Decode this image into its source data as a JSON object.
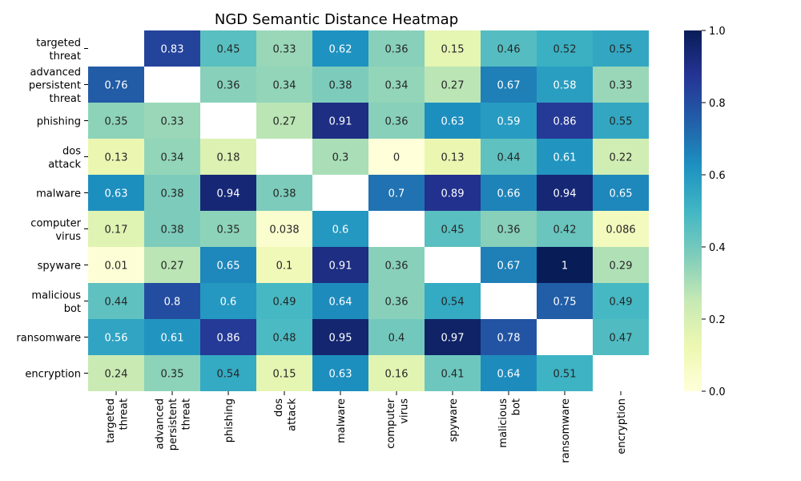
{
  "chart_data": {
    "type": "heatmap",
    "title": "NGD Semantic Distance Heatmap",
    "colormap": "YlGnBu",
    "row_labels": [
      [
        "targeted",
        "threat"
      ],
      [
        "advanced",
        "persistent",
        "threat"
      ],
      [
        "phishing"
      ],
      [
        "dos",
        "attack"
      ],
      [
        "malware"
      ],
      [
        "computer",
        "virus"
      ],
      [
        "spyware"
      ],
      [
        "malicious",
        "bot"
      ],
      [
        "ransomware"
      ],
      [
        "encryption"
      ]
    ],
    "col_labels": [
      [
        "targeted",
        "threat"
      ],
      [
        "advanced",
        "persistent",
        "threat"
      ],
      [
        "phishing"
      ],
      [
        "dos",
        "attack"
      ],
      [
        "malware"
      ],
      [
        "computer",
        "virus"
      ],
      [
        "spyware"
      ],
      [
        "malicious",
        "bot"
      ],
      [
        "ransomware"
      ],
      [
        "encryption"
      ]
    ],
    "values": [
      [
        null,
        0.83,
        0.45,
        0.33,
        0.62,
        0.36,
        0.15,
        0.46,
        0.52,
        0.55
      ],
      [
        0.76,
        null,
        0.36,
        0.34,
        0.38,
        0.34,
        0.27,
        0.67,
        0.58,
        0.33
      ],
      [
        0.35,
        0.33,
        null,
        0.27,
        0.91,
        0.36,
        0.63,
        0.59,
        0.86,
        0.55
      ],
      [
        0.13,
        0.34,
        0.18,
        null,
        0.3,
        0,
        0.13,
        0.44,
        0.61,
        0.22
      ],
      [
        0.63,
        0.38,
        0.94,
        0.38,
        null,
        0.7,
        0.89,
        0.66,
        0.94,
        0.65
      ],
      [
        0.17,
        0.38,
        0.35,
        0.038,
        0.6,
        null,
        0.45,
        0.36,
        0.42,
        0.086
      ],
      [
        0.01,
        0.27,
        0.65,
        0.1,
        0.91,
        0.36,
        null,
        0.67,
        1,
        0.29
      ],
      [
        0.44,
        0.8,
        0.6,
        0.49,
        0.64,
        0.36,
        0.54,
        null,
        0.75,
        0.49
      ],
      [
        0.56,
        0.61,
        0.86,
        0.48,
        0.95,
        0.4,
        0.97,
        0.78,
        null,
        0.47
      ],
      [
        0.24,
        0.35,
        0.54,
        0.15,
        0.63,
        0.16,
        0.41,
        0.64,
        0.51,
        null
      ]
    ],
    "value_labels": [
      [
        "",
        "0.83",
        "0.45",
        "0.33",
        "0.62",
        "0.36",
        "0.15",
        "0.46",
        "0.52",
        "0.55"
      ],
      [
        "0.76",
        "",
        "0.36",
        "0.34",
        "0.38",
        "0.34",
        "0.27",
        "0.67",
        "0.58",
        "0.33"
      ],
      [
        "0.35",
        "0.33",
        "",
        "0.27",
        "0.91",
        "0.36",
        "0.63",
        "0.59",
        "0.86",
        "0.55"
      ],
      [
        "0.13",
        "0.34",
        "0.18",
        "",
        "0.3",
        "0",
        "0.13",
        "0.44",
        "0.61",
        "0.22"
      ],
      [
        "0.63",
        "0.38",
        "0.94",
        "0.38",
        "",
        "0.7",
        "0.89",
        "0.66",
        "0.94",
        "0.65"
      ],
      [
        "0.17",
        "0.38",
        "0.35",
        "0.038",
        "0.6",
        "",
        "0.45",
        "0.36",
        "0.42",
        "0.086"
      ],
      [
        "0.01",
        "0.27",
        "0.65",
        "0.1",
        "0.91",
        "0.36",
        "",
        "0.67",
        "1",
        "0.29"
      ],
      [
        "0.44",
        "0.8",
        "0.6",
        "0.49",
        "0.64",
        "0.36",
        "0.54",
        "",
        "0.75",
        "0.49"
      ],
      [
        "0.56",
        "0.61",
        "0.86",
        "0.48",
        "0.95",
        "0.4",
        "0.97",
        "0.78",
        "",
        "0.47"
      ],
      [
        "0.24",
        "0.35",
        "0.54",
        "0.15",
        "0.63",
        "0.16",
        "0.41",
        "0.64",
        "0.51",
        ""
      ]
    ],
    "colorbar": {
      "range": [
        0,
        1
      ],
      "ticks": [
        "0.0",
        "0.2",
        "0.4",
        "0.6",
        "0.8",
        "1.0"
      ]
    }
  }
}
